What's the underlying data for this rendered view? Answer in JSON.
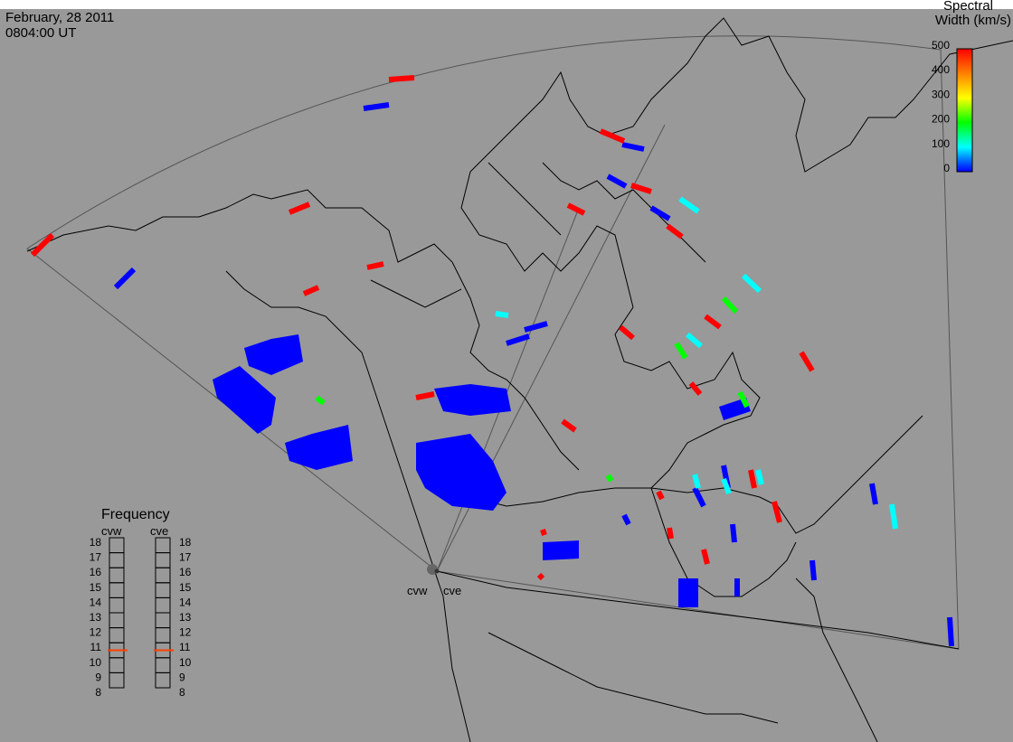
{
  "header": {
    "date": "February, 28 2011",
    "time": "0804:00 UT"
  },
  "colorbar": {
    "title_line1": "Spectral",
    "title_line2": "Width (km/s)",
    "ticks": [
      "500",
      "400",
      "300",
      "200",
      "100",
      "0"
    ],
    "min": 0,
    "max": 500,
    "colors": [
      "#ff0000",
      "#ff8000",
      "#ffff00",
      "#00ff00",
      "#00ffff",
      "#0040ff",
      "#0000ff"
    ]
  },
  "frequency_panel": {
    "title": "Frequency",
    "left_label": "cvw",
    "right_label": "cve",
    "ticks": [
      "18",
      "17",
      "16",
      "15",
      "14",
      "13",
      "12",
      "11",
      "10",
      "9",
      "8"
    ],
    "cvw_value_mhz": 10.8,
    "cve_value_mhz": 10.8,
    "marker_color": "#ff4000"
  },
  "radar_sites": {
    "west": "cvw",
    "east": "cve"
  },
  "map": {
    "background_color": "#999999",
    "land_outline_color": "#000000",
    "fov_outline_color": "#555555",
    "scatter_colors": {
      "low": "#0000ff",
      "mid_low": "#0060ff",
      "mid": "#00ffff",
      "mid_high": "#00ff00",
      "high": "#ff0000"
    }
  }
}
